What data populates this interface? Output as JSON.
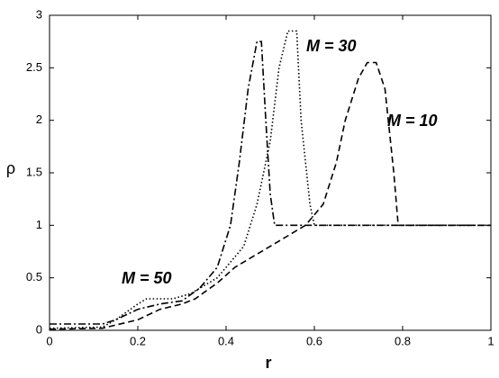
{
  "chart_data": {
    "type": "line",
    "xlabel": "r",
    "ylabel": "ρ",
    "xlim": [
      0,
      1
    ],
    "ylim": [
      0,
      3
    ],
    "xticks": [
      0,
      0.2,
      0.4,
      0.6,
      0.8,
      1
    ],
    "yticks": [
      0,
      0.5,
      1,
      1.5,
      2,
      2.5,
      3
    ],
    "grid": false,
    "series": [
      {
        "name": "M = 10",
        "color": "#000000",
        "linestyle": "dashed",
        "x": [
          0,
          0.12,
          0.2,
          0.25,
          0.3,
          0.33,
          0.38,
          0.42,
          0.46,
          0.5,
          0.54,
          0.58,
          0.62,
          0.65,
          0.67,
          0.7,
          0.72,
          0.74,
          0.76,
          0.78,
          0.79,
          1
        ],
        "values": [
          0.01,
          0.02,
          0.1,
          0.2,
          0.25,
          0.3,
          0.45,
          0.6,
          0.7,
          0.8,
          0.9,
          1.0,
          1.2,
          1.6,
          2.0,
          2.4,
          2.55,
          2.55,
          2.3,
          1.5,
          1.0,
          1.0
        ]
      },
      {
        "name": "M = 30",
        "color": "#000000",
        "linestyle": "dotted",
        "x": [
          0,
          0.12,
          0.15,
          0.2,
          0.22,
          0.28,
          0.32,
          0.38,
          0.44,
          0.47,
          0.5,
          0.52,
          0.54,
          0.56,
          0.57,
          0.59,
          0.6,
          1
        ],
        "values": [
          0.02,
          0.03,
          0.1,
          0.25,
          0.3,
          0.3,
          0.35,
          0.5,
          0.8,
          1.2,
          1.8,
          2.5,
          2.85,
          2.85,
          2.0,
          1.2,
          1.0,
          1.0
        ]
      },
      {
        "name": "M = 50",
        "color": "#000000",
        "linestyle": "dashdot",
        "x": [
          0,
          0.12,
          0.15,
          0.2,
          0.25,
          0.3,
          0.34,
          0.38,
          0.41,
          0.43,
          0.45,
          0.47,
          0.48,
          0.49,
          0.5,
          0.51,
          1
        ],
        "values": [
          0.06,
          0.06,
          0.1,
          0.2,
          0.25,
          0.28,
          0.4,
          0.6,
          1.0,
          1.6,
          2.3,
          2.75,
          2.75,
          2.0,
          1.3,
          1.0,
          1.0
        ]
      }
    ]
  }
}
